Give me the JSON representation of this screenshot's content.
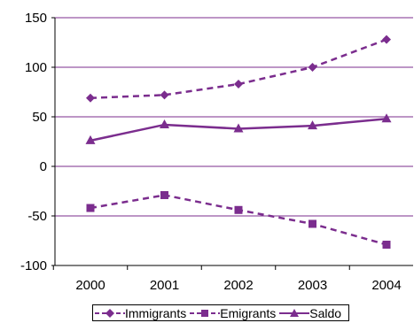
{
  "chart_data": {
    "type": "line",
    "categories": [
      "2000",
      "2001",
      "2002",
      "2003",
      "2004"
    ],
    "series": [
      {
        "name": "Immigrants",
        "values": [
          69,
          72,
          83,
          100,
          128
        ],
        "style": "dashed",
        "marker": "diamond"
      },
      {
        "name": "Emigrants",
        "values": [
          -42,
          -29,
          -44,
          -58,
          -79
        ],
        "style": "dashed",
        "marker": "square"
      },
      {
        "name": "Saldo",
        "values": [
          26,
          42,
          38,
          41,
          48
        ],
        "style": "solid",
        "marker": "triangle"
      }
    ],
    "yticks": [
      "150",
      "100",
      "50",
      "0",
      "-50",
      "-100"
    ],
    "ylim": [
      -100,
      150
    ],
    "grid": true,
    "legend_position": "bottom",
    "colors": {
      "series": "#7B2D8E",
      "grid": "#7B2D8E",
      "axis": "#000000"
    }
  }
}
